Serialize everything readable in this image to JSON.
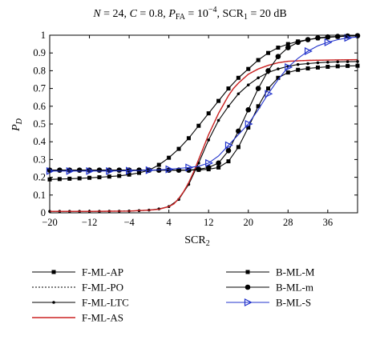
{
  "chart_data": {
    "type": "line",
    "title": "N = 24, C = 0.8, P_FA = 10^-4, SCR_1 = 20 dB",
    "title_parts": {
      "n": "N",
      "n_value": " = 24, ",
      "c": "C",
      "c_value": " = 0.8, ",
      "p": "P",
      "p_sub": "FA",
      "p_eq": " = 10",
      "p_exp": "−4",
      "scr": ", SCR",
      "scr_sub": "1",
      "scr_value": " = 20 dB"
    },
    "xlabel": "SCR",
    "xlabel_sub": "2",
    "ylabel": "P",
    "ylabel_sub": "D",
    "xlim": [
      -20,
      42
    ],
    "ylim": [
      0,
      1
    ],
    "xticks": [
      -20,
      -12,
      -4,
      4,
      12,
      20,
      28,
      36
    ],
    "xtick_labels": [
      "−20",
      "−12",
      "−4",
      "4",
      "12",
      "20",
      "28",
      "36"
    ],
    "yticks": [
      0,
      0.1,
      0.2,
      0.3,
      0.4,
      0.5,
      0.6,
      0.7,
      0.8,
      0.9,
      1
    ],
    "ytick_labels": [
      "0",
      "0.1",
      "0.2",
      "0.3",
      "0.4",
      "0.5",
      "0.6",
      "0.7",
      "0.8",
      "0.9",
      "1"
    ],
    "grid": false,
    "legend_position": "below",
    "series": [
      {
        "name": "F-ML-AP",
        "color": "#000000",
        "marker": "square",
        "dash": "",
        "x": [
          -20,
          -18,
          -16,
          -14,
          -12,
          -10,
          -8,
          -6,
          -4,
          -2,
          0,
          2,
          4,
          6,
          8,
          10,
          12,
          14,
          16,
          18,
          20,
          22,
          24,
          26,
          28,
          30,
          32,
          34,
          36,
          38,
          40,
          42
        ],
        "y": [
          0.188,
          0.19,
          0.192,
          0.194,
          0.197,
          0.2,
          0.204,
          0.208,
          0.215,
          0.225,
          0.24,
          0.27,
          0.31,
          0.36,
          0.42,
          0.49,
          0.56,
          0.63,
          0.7,
          0.76,
          0.81,
          0.86,
          0.9,
          0.93,
          0.95,
          0.965,
          0.975,
          0.983,
          0.988,
          0.992,
          0.995,
          0.997
        ]
      },
      {
        "name": "F-ML-PO",
        "color": "#000000",
        "marker": "none",
        "dash": "2,2",
        "x": [
          -20,
          -16,
          -12,
          -8,
          -4,
          0,
          2,
          4,
          5,
          6,
          7,
          8,
          9,
          10,
          11,
          12,
          13,
          14,
          15,
          16,
          17,
          18,
          20,
          22,
          24,
          26,
          28,
          32,
          36,
          42
        ],
        "y": [
          0.008,
          0.008,
          0.008,
          0.009,
          0.01,
          0.015,
          0.02,
          0.035,
          0.05,
          0.08,
          0.12,
          0.17,
          0.23,
          0.3,
          0.37,
          0.44,
          0.5,
          0.56,
          0.61,
          0.66,
          0.7,
          0.73,
          0.78,
          0.81,
          0.83,
          0.845,
          0.853,
          0.858,
          0.86,
          0.862
        ]
      },
      {
        "name": "F-ML-LTC",
        "color": "#000000",
        "marker": "dot",
        "dash": "",
        "x": [
          -20,
          -18,
          -16,
          -14,
          -12,
          -10,
          -8,
          -6,
          -4,
          -2,
          0,
          2,
          4,
          6,
          8,
          10,
          12,
          14,
          16,
          18,
          20,
          22,
          24,
          26,
          28,
          30,
          32,
          34,
          36,
          38,
          40,
          42
        ],
        "y": [
          0.008,
          0.008,
          0.008,
          0.008,
          0.008,
          0.008,
          0.009,
          0.009,
          0.01,
          0.012,
          0.015,
          0.022,
          0.035,
          0.075,
          0.16,
          0.28,
          0.41,
          0.52,
          0.6,
          0.67,
          0.72,
          0.76,
          0.79,
          0.81,
          0.825,
          0.835,
          0.84,
          0.845,
          0.848,
          0.85,
          0.851,
          0.852
        ]
      },
      {
        "name": "F-ML-AS",
        "color": "#cc2222",
        "marker": "none",
        "dash": "",
        "x": [
          -20,
          -16,
          -12,
          -8,
          -4,
          0,
          2,
          4,
          5,
          6,
          7,
          8,
          9,
          10,
          11,
          12,
          13,
          14,
          15,
          16,
          17,
          18,
          20,
          22,
          24,
          26,
          28,
          32,
          36,
          42
        ],
        "y": [
          0.008,
          0.008,
          0.008,
          0.009,
          0.01,
          0.015,
          0.02,
          0.035,
          0.05,
          0.08,
          0.12,
          0.17,
          0.23,
          0.3,
          0.37,
          0.44,
          0.5,
          0.56,
          0.61,
          0.66,
          0.7,
          0.73,
          0.78,
          0.81,
          0.83,
          0.845,
          0.853,
          0.858,
          0.86,
          0.862
        ]
      },
      {
        "name": "B-ML-M",
        "color": "#000000",
        "marker": "square",
        "dash": "",
        "x": [
          -20,
          -18,
          -16,
          -14,
          -12,
          -10,
          -8,
          -6,
          -4,
          -2,
          0,
          2,
          4,
          6,
          8,
          10,
          12,
          14,
          16,
          18,
          20,
          22,
          24,
          26,
          28,
          30,
          32,
          34,
          36,
          38,
          40,
          42
        ],
        "y": [
          0.24,
          0.24,
          0.24,
          0.24,
          0.24,
          0.24,
          0.24,
          0.24,
          0.24,
          0.24,
          0.24,
          0.24,
          0.24,
          0.24,
          0.24,
          0.242,
          0.245,
          0.255,
          0.29,
          0.37,
          0.48,
          0.6,
          0.7,
          0.76,
          0.79,
          0.805,
          0.813,
          0.818,
          0.822,
          0.825,
          0.827,
          0.828
        ]
      },
      {
        "name": "B-ML-m",
        "color": "#000000",
        "marker": "circle",
        "dash": "",
        "x": [
          -20,
          -18,
          -16,
          -14,
          -12,
          -10,
          -8,
          -6,
          -4,
          -2,
          0,
          2,
          4,
          6,
          8,
          10,
          12,
          14,
          16,
          18,
          20,
          22,
          24,
          26,
          28,
          30,
          32,
          34,
          36,
          38,
          40,
          42
        ],
        "y": [
          0.24,
          0.24,
          0.24,
          0.24,
          0.24,
          0.24,
          0.24,
          0.24,
          0.24,
          0.24,
          0.24,
          0.24,
          0.24,
          0.24,
          0.24,
          0.245,
          0.255,
          0.28,
          0.35,
          0.46,
          0.58,
          0.7,
          0.8,
          0.88,
          0.93,
          0.96,
          0.975,
          0.985,
          0.99,
          0.993,
          0.995,
          0.997
        ]
      },
      {
        "name": "B-ML-S",
        "color": "#2233cc",
        "marker": "triangle",
        "dash": "",
        "x": [
          -20,
          -18,
          -16,
          -14,
          -12,
          -10,
          -8,
          -6,
          -4,
          -2,
          0,
          2,
          4,
          6,
          8,
          10,
          12,
          14,
          16,
          18,
          20,
          22,
          24,
          26,
          28,
          30,
          32,
          34,
          36,
          38,
          40,
          42
        ],
        "y": [
          0.235,
          0.235,
          0.235,
          0.235,
          0.235,
          0.235,
          0.235,
          0.236,
          0.237,
          0.238,
          0.24,
          0.242,
          0.245,
          0.25,
          0.255,
          0.262,
          0.28,
          0.32,
          0.38,
          0.44,
          0.5,
          0.58,
          0.67,
          0.75,
          0.82,
          0.87,
          0.91,
          0.94,
          0.96,
          0.975,
          0.985,
          0.99
        ]
      }
    ]
  }
}
